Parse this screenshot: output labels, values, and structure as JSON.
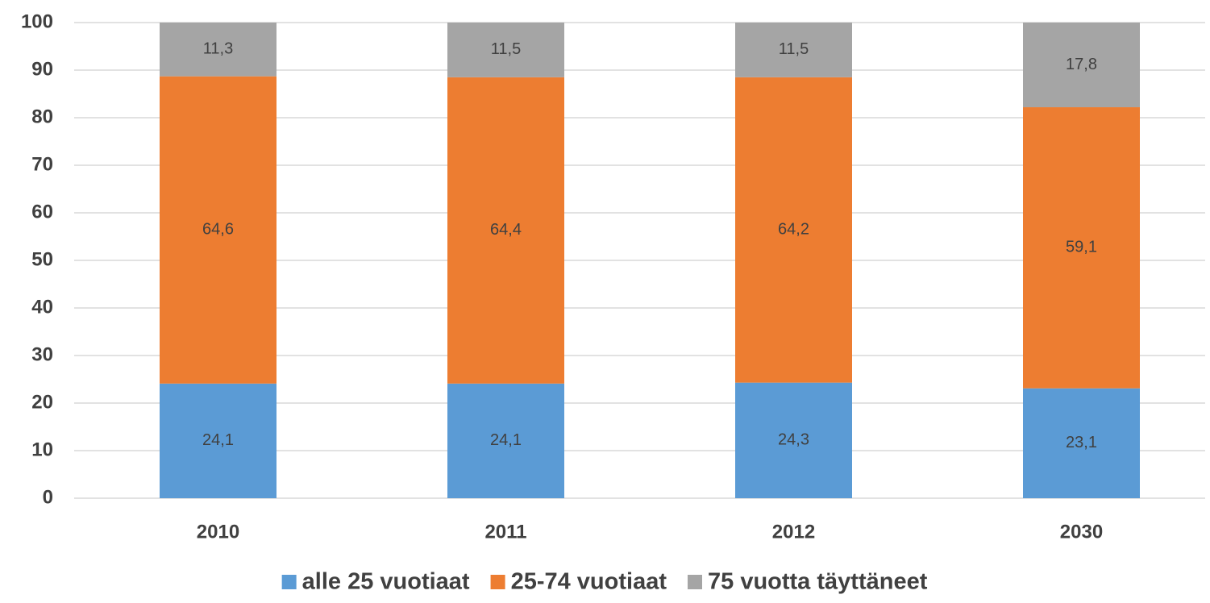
{
  "chart_data": {
    "type": "stacked_bar",
    "categories": [
      "2010",
      "2011",
      "2012",
      "2030"
    ],
    "series": [
      {
        "name": "alle 25 vuotiaat",
        "color": "#5b9bd5",
        "values": [
          24.1,
          24.1,
          24.3,
          23.1
        ],
        "value_labels": [
          "24,1",
          "24,1",
          "24,3",
          "23,1"
        ]
      },
      {
        "name": "25-74 vuotiaat",
        "color": "#ed7d31",
        "values": [
          64.6,
          64.4,
          64.2,
          59.1
        ],
        "value_labels": [
          "64,6",
          "64,4",
          "64,2",
          "59,1"
        ]
      },
      {
        "name": "75 vuotta täyttäneet",
        "color": "#a5a5a5",
        "values": [
          11.3,
          11.5,
          11.5,
          17.8
        ],
        "value_labels": [
          "11,3",
          "11,5",
          "11,5",
          "17,8"
        ]
      }
    ],
    "ylim": [
      0,
      100
    ],
    "yticks": [
      0,
      10,
      20,
      30,
      40,
      50,
      60,
      70,
      80,
      90,
      100
    ],
    "grid": true,
    "legend": "bottom"
  }
}
